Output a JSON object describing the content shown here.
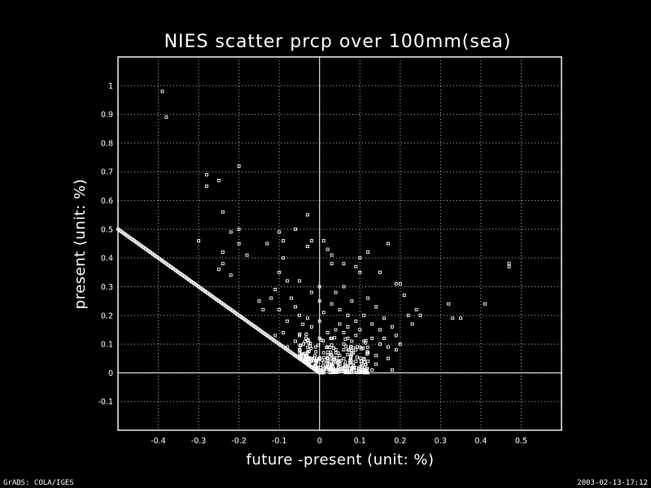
{
  "footer": {
    "left": "GrADS: COLA/IGES",
    "right": "2003-02-13-17:12"
  },
  "colors": {
    "background": "#000000",
    "foreground": "#ffffff"
  },
  "chart_data": {
    "type": "scatter",
    "title": "NIES scatter prcp over 100mm(sea)",
    "xlabel": "future -present (unit: %)",
    "ylabel": "present (unit: %)",
    "xlim": [
      -0.5,
      0.6
    ],
    "ylim": [
      -0.2,
      1.1
    ],
    "xticks": [
      -0.4,
      -0.3,
      -0.2,
      -0.1,
      0,
      0.1,
      0.2,
      0.3,
      0.4,
      0.5
    ],
    "xtick_labels": [
      "-0.4",
      "-0.3",
      "-0.2",
      "-0.1",
      "0",
      "0.1",
      "0.2",
      "0.3",
      "0.4",
      "0.5"
    ],
    "yticks": [
      -0.1,
      0,
      0.1,
      0.2,
      0.3,
      0.4,
      0.5,
      0.6,
      0.7,
      0.8,
      0.9,
      1
    ],
    "ytick_labels": [
      "-0.1",
      "0",
      "0.1",
      "0.2",
      "0.3",
      "0.4",
      "0.5",
      "0.6",
      "0.7",
      "0.8",
      "0.9",
      "1"
    ],
    "grid": true,
    "legend": "none",
    "reference_lines": {
      "x": 0,
      "y": 0
    },
    "series": [
      {
        "marker": "open-square",
        "points": [
          [
            -0.39,
            0.98
          ],
          [
            -0.38,
            0.89
          ],
          [
            -0.28,
            0.69
          ],
          [
            -0.28,
            0.65
          ],
          [
            -0.25,
            0.67
          ],
          [
            -0.2,
            0.72
          ],
          [
            -0.24,
            0.56
          ],
          [
            -0.3,
            0.46
          ],
          [
            -0.22,
            0.49
          ],
          [
            -0.2,
            0.5
          ],
          [
            -0.2,
            0.45
          ],
          [
            -0.18,
            0.41
          ],
          [
            -0.24,
            0.42
          ],
          [
            -0.24,
            0.38
          ],
          [
            -0.25,
            0.36
          ],
          [
            -0.22,
            0.34
          ],
          [
            -0.13,
            0.45
          ],
          [
            -0.1,
            0.49
          ],
          [
            -0.09,
            0.46
          ],
          [
            -0.02,
            0.46
          ],
          [
            -0.03,
            0.55
          ],
          [
            -0.06,
            0.5
          ],
          [
            -0.03,
            0.44
          ],
          [
            0.01,
            0.46
          ],
          [
            0.02,
            0.43
          ],
          [
            -0.09,
            0.4
          ],
          [
            -0.1,
            0.35
          ],
          [
            0.03,
            0.41
          ],
          [
            0.03,
            0.38
          ],
          [
            0.06,
            0.38
          ],
          [
            0.09,
            0.37
          ],
          [
            0.1,
            0.4
          ],
          [
            0.1,
            0.35
          ],
          [
            0.12,
            0.42
          ],
          [
            0.15,
            0.35
          ],
          [
            0.17,
            0.45
          ],
          [
            0.19,
            0.31
          ],
          [
            0.2,
            0.31
          ],
          [
            0.21,
            0.27
          ],
          [
            0.24,
            0.22
          ],
          [
            0.23,
            0.17
          ],
          [
            0.25,
            0.2
          ],
          [
            0.22,
            0.2
          ],
          [
            0.32,
            0.24
          ],
          [
            0.33,
            0.19
          ],
          [
            0.35,
            0.19
          ],
          [
            0.41,
            0.24
          ],
          [
            0.47,
            0.38
          ],
          [
            0.47,
            0.37
          ],
          [
            0.18,
            0.01
          ],
          [
            0.17,
            0.05
          ],
          [
            0.19,
            0.08
          ],
          [
            0.2,
            0.1
          ],
          [
            0.15,
            0.15
          ],
          [
            0.14,
            0.23
          ],
          [
            0.06,
            0.3
          ],
          [
            0.04,
            0.28
          ],
          [
            0.0,
            0.3
          ],
          [
            -0.02,
            0.28
          ],
          [
            -0.05,
            0.32
          ],
          [
            -0.08,
            0.32
          ],
          [
            -0.11,
            0.29
          ],
          [
            -0.12,
            0.26
          ],
          [
            -0.15,
            0.25
          ],
          [
            -0.14,
            0.22
          ],
          [
            -0.06,
            0.23
          ],
          [
            -0.05,
            0.2
          ],
          [
            -0.03,
            0.19
          ],
          [
            0.05,
            0.22
          ],
          [
            0.08,
            0.25
          ],
          [
            0.12,
            0.26
          ],
          [
            0.11,
            0.2
          ],
          [
            0.09,
            0.18
          ],
          [
            0.16,
            0.19
          ],
          [
            0.18,
            0.16
          ],
          [
            0.19,
            0.13
          ],
          [
            0.13,
            0.12
          ],
          [
            0.1,
            0.15
          ],
          [
            0.07,
            0.12
          ],
          [
            0.04,
            0.15
          ],
          [
            -0.08,
            0.18
          ],
          [
            -0.09,
            0.14
          ],
          [
            -0.11,
            0.13
          ],
          [
            -0.06,
            0.11
          ],
          [
            -0.04,
            0.1
          ],
          [
            0.0,
            0.12
          ],
          [
            0.02,
            0.09
          ],
          [
            0.06,
            0.1
          ],
          [
            0.09,
            0.08
          ],
          [
            0.12,
            0.07
          ],
          [
            0.14,
            0.06
          ],
          [
            0.11,
            0.05
          ],
          [
            0.08,
            0.04
          ],
          [
            0.05,
            0.06
          ],
          [
            0.03,
            0.03
          ],
          [
            0.0,
            0.05
          ],
          [
            -0.02,
            0.04
          ],
          [
            -0.03,
            0.07
          ],
          [
            -0.01,
            0.01
          ],
          [
            0.01,
            0.0
          ],
          [
            0.04,
            0.01
          ],
          [
            0.07,
            0.02
          ],
          [
            0.1,
            0.02
          ],
          [
            0.13,
            0.01
          ],
          [
            0.02,
            0.14
          ],
          [
            -0.02,
            0.16
          ],
          [
            0.01,
            0.21
          ],
          [
            0.05,
            0.17
          ],
          [
            0.07,
            0.2
          ],
          [
            -0.1,
            0.22
          ],
          [
            0.0,
            0.25
          ],
          [
            0.03,
            0.24
          ],
          [
            -0.07,
            0.26
          ],
          [
            0.15,
            0.1
          ],
          [
            0.17,
            0.09
          ],
          [
            0.16,
            0.12
          ],
          [
            0.06,
            0.05
          ],
          [
            0.08,
            0.07
          ],
          [
            0.04,
            0.08
          ],
          [
            0.11,
            0.11
          ],
          [
            -0.01,
            0.09
          ],
          [
            -0.05,
            0.13
          ],
          [
            0.03,
            0.12
          ],
          [
            0.09,
            0.13
          ],
          [
            0.05,
            0.03
          ],
          [
            0.02,
            0.05
          ],
          [
            -0.04,
            0.06
          ],
          [
            0.12,
            0.04
          ],
          [
            0.14,
            0.03
          ],
          [
            0.06,
            0.14
          ],
          [
            0.0,
            0.18
          ],
          [
            -0.08,
            0.09
          ],
          [
            0.1,
            0.09
          ],
          [
            0.07,
            0.16
          ],
          [
            0.13,
            0.17
          ],
          [
            0.01,
            0.07
          ],
          [
            0.04,
            0.04
          ],
          [
            -0.02,
            0.02
          ],
          [
            0.09,
            0.04
          ],
          [
            0.06,
            0.08
          ],
          [
            0.02,
            0.02
          ],
          [
            0.0,
            0.01
          ],
          [
            0.03,
            0.06
          ],
          [
            0.08,
            0.11
          ],
          [
            -0.06,
            0.06
          ]
        ]
      },
      {
        "marker": "open-square",
        "note_free_line": true,
        "x_range": [
          -0.5,
          0.0
        ],
        "slope": -1.0,
        "intercept": 0.0
      }
    ]
  }
}
